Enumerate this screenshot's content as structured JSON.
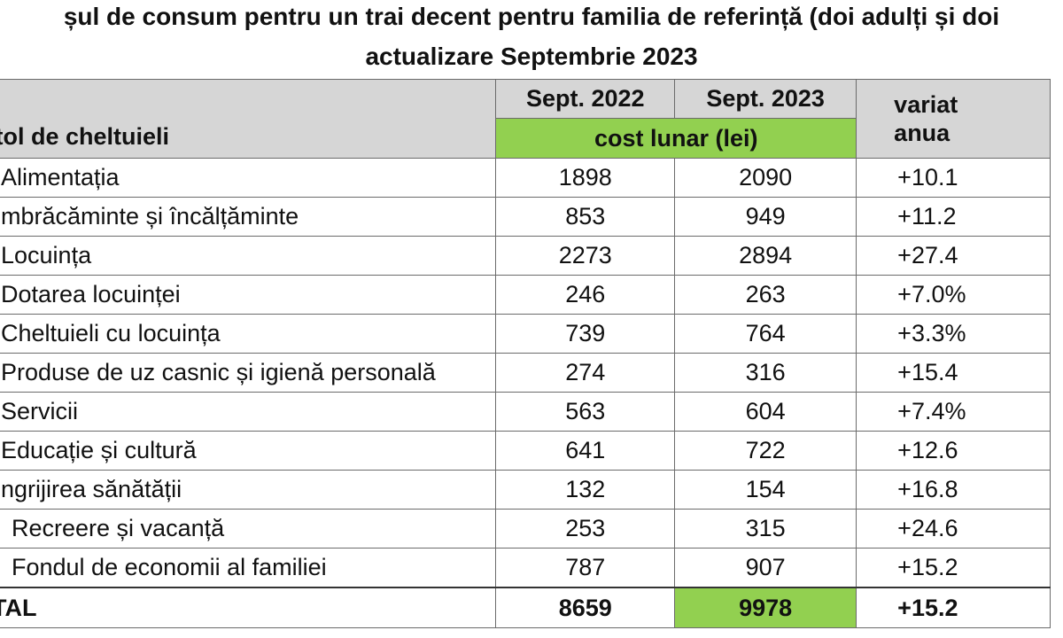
{
  "title_line1": "șul de consum pentru un trai decent pentru familia de referință (doi adulți și doi",
  "title_line2": "actualizare Septembrie 2023",
  "header": {
    "col0": "itol de cheltuieli",
    "col1": "Sept. 2022",
    "col2": "Sept. 2023",
    "subheader": "cost lunar (lei)",
    "col3_line1": "variat",
    "col3_line2": "anua"
  },
  "rows": [
    {
      "label": "Alimentația",
      "v2022": "1898",
      "v2023": "2090",
      "var": "+10.1"
    },
    {
      "label": "mbrăcăminte și încălțăminte",
      "v2022": "853",
      "v2023": "949",
      "var": "+11.2"
    },
    {
      "label": "Locuința",
      "v2022": "2273",
      "v2023": "2894",
      "var": "+27.4"
    },
    {
      "label": "Dotarea locuinței",
      "v2022": "246",
      "v2023": "263",
      "var": "+7.0%"
    },
    {
      "label": "Cheltuieli cu locuința",
      "v2022": "739",
      "v2023": "764",
      "var": "+3.3%"
    },
    {
      "label": "Produse de uz casnic și igienă personală",
      "v2022": "274",
      "v2023": "316",
      "var": "+15.4"
    },
    {
      "label": "Servicii",
      "v2022": "563",
      "v2023": "604",
      "var": "+7.4%"
    },
    {
      "label": "Educație și cultură",
      "v2022": "641",
      "v2023": "722",
      "var": "+12.6"
    },
    {
      "label": "ngrijirea sănătății",
      "v2022": "132",
      "v2023": "154",
      "var": "+16.8"
    },
    {
      "label": "Recreere și vacanță",
      "v2022": "253",
      "v2023": "315",
      "var": "+24.6"
    },
    {
      "label": "Fondul de economii al familiei",
      "v2022": "787",
      "v2023": "907",
      "var": "+15.2"
    }
  ],
  "total": {
    "label": "TAL",
    "v2022": "8659",
    "v2023": "9978",
    "var": "+15.2"
  },
  "colors": {
    "header_bg": "#d6d6d6",
    "highlight": "#92d050",
    "border": "#6b6b6b"
  }
}
